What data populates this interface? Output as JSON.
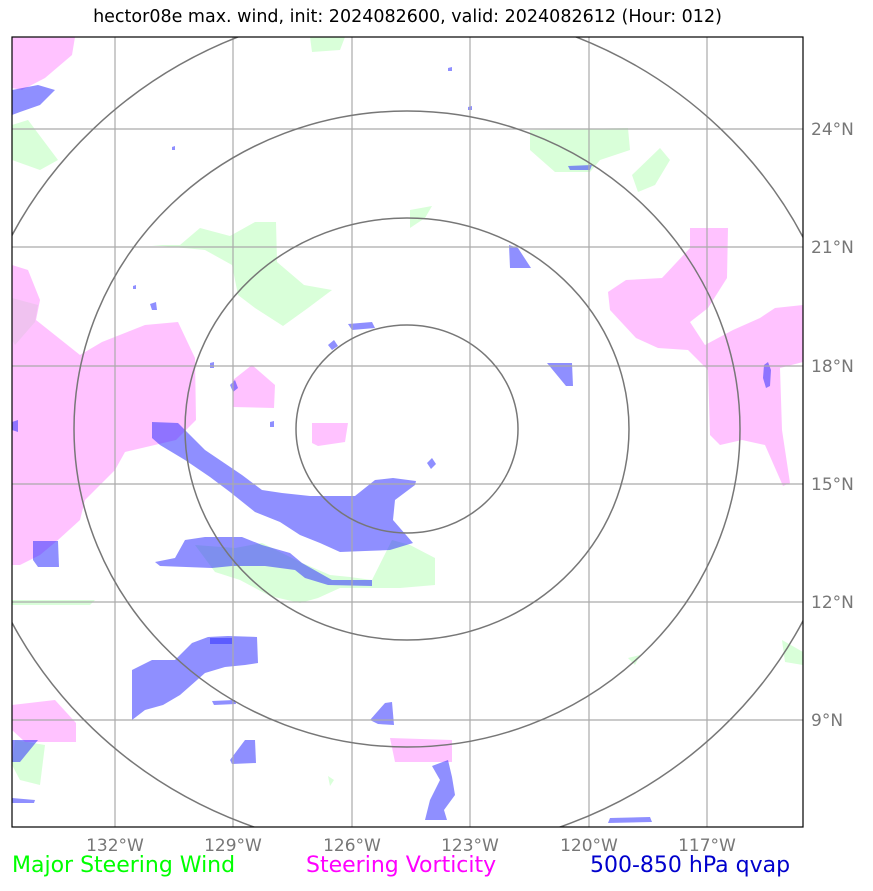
{
  "title": "hector08e max. wind, init: 2024082600, valid: 2024082612 (Hour: 012)",
  "map": {
    "lon_labels": [
      "132°W",
      "129°W",
      "126°W",
      "123°W",
      "120°W",
      "117°W"
    ],
    "lat_labels": [
      "24°N",
      "21°N",
      "18°N",
      "15°N",
      "12°N",
      "9°N"
    ],
    "range_rings_count": 4,
    "colors": {
      "wind": "#ccffcc",
      "vorticity": "#ff99ff",
      "qvap": "#3333ff",
      "grid": "#aaaaaa",
      "rings": "#777777"
    }
  },
  "legend": {
    "wind_label": "Major Steering Wind",
    "wind_color": "#00ff00",
    "vorticity_label": "Steering Vorticity",
    "vorticity_color": "#ff00ff",
    "qvap_label": "500-850 hPa qvap",
    "qvap_color": "#0000cc"
  }
}
